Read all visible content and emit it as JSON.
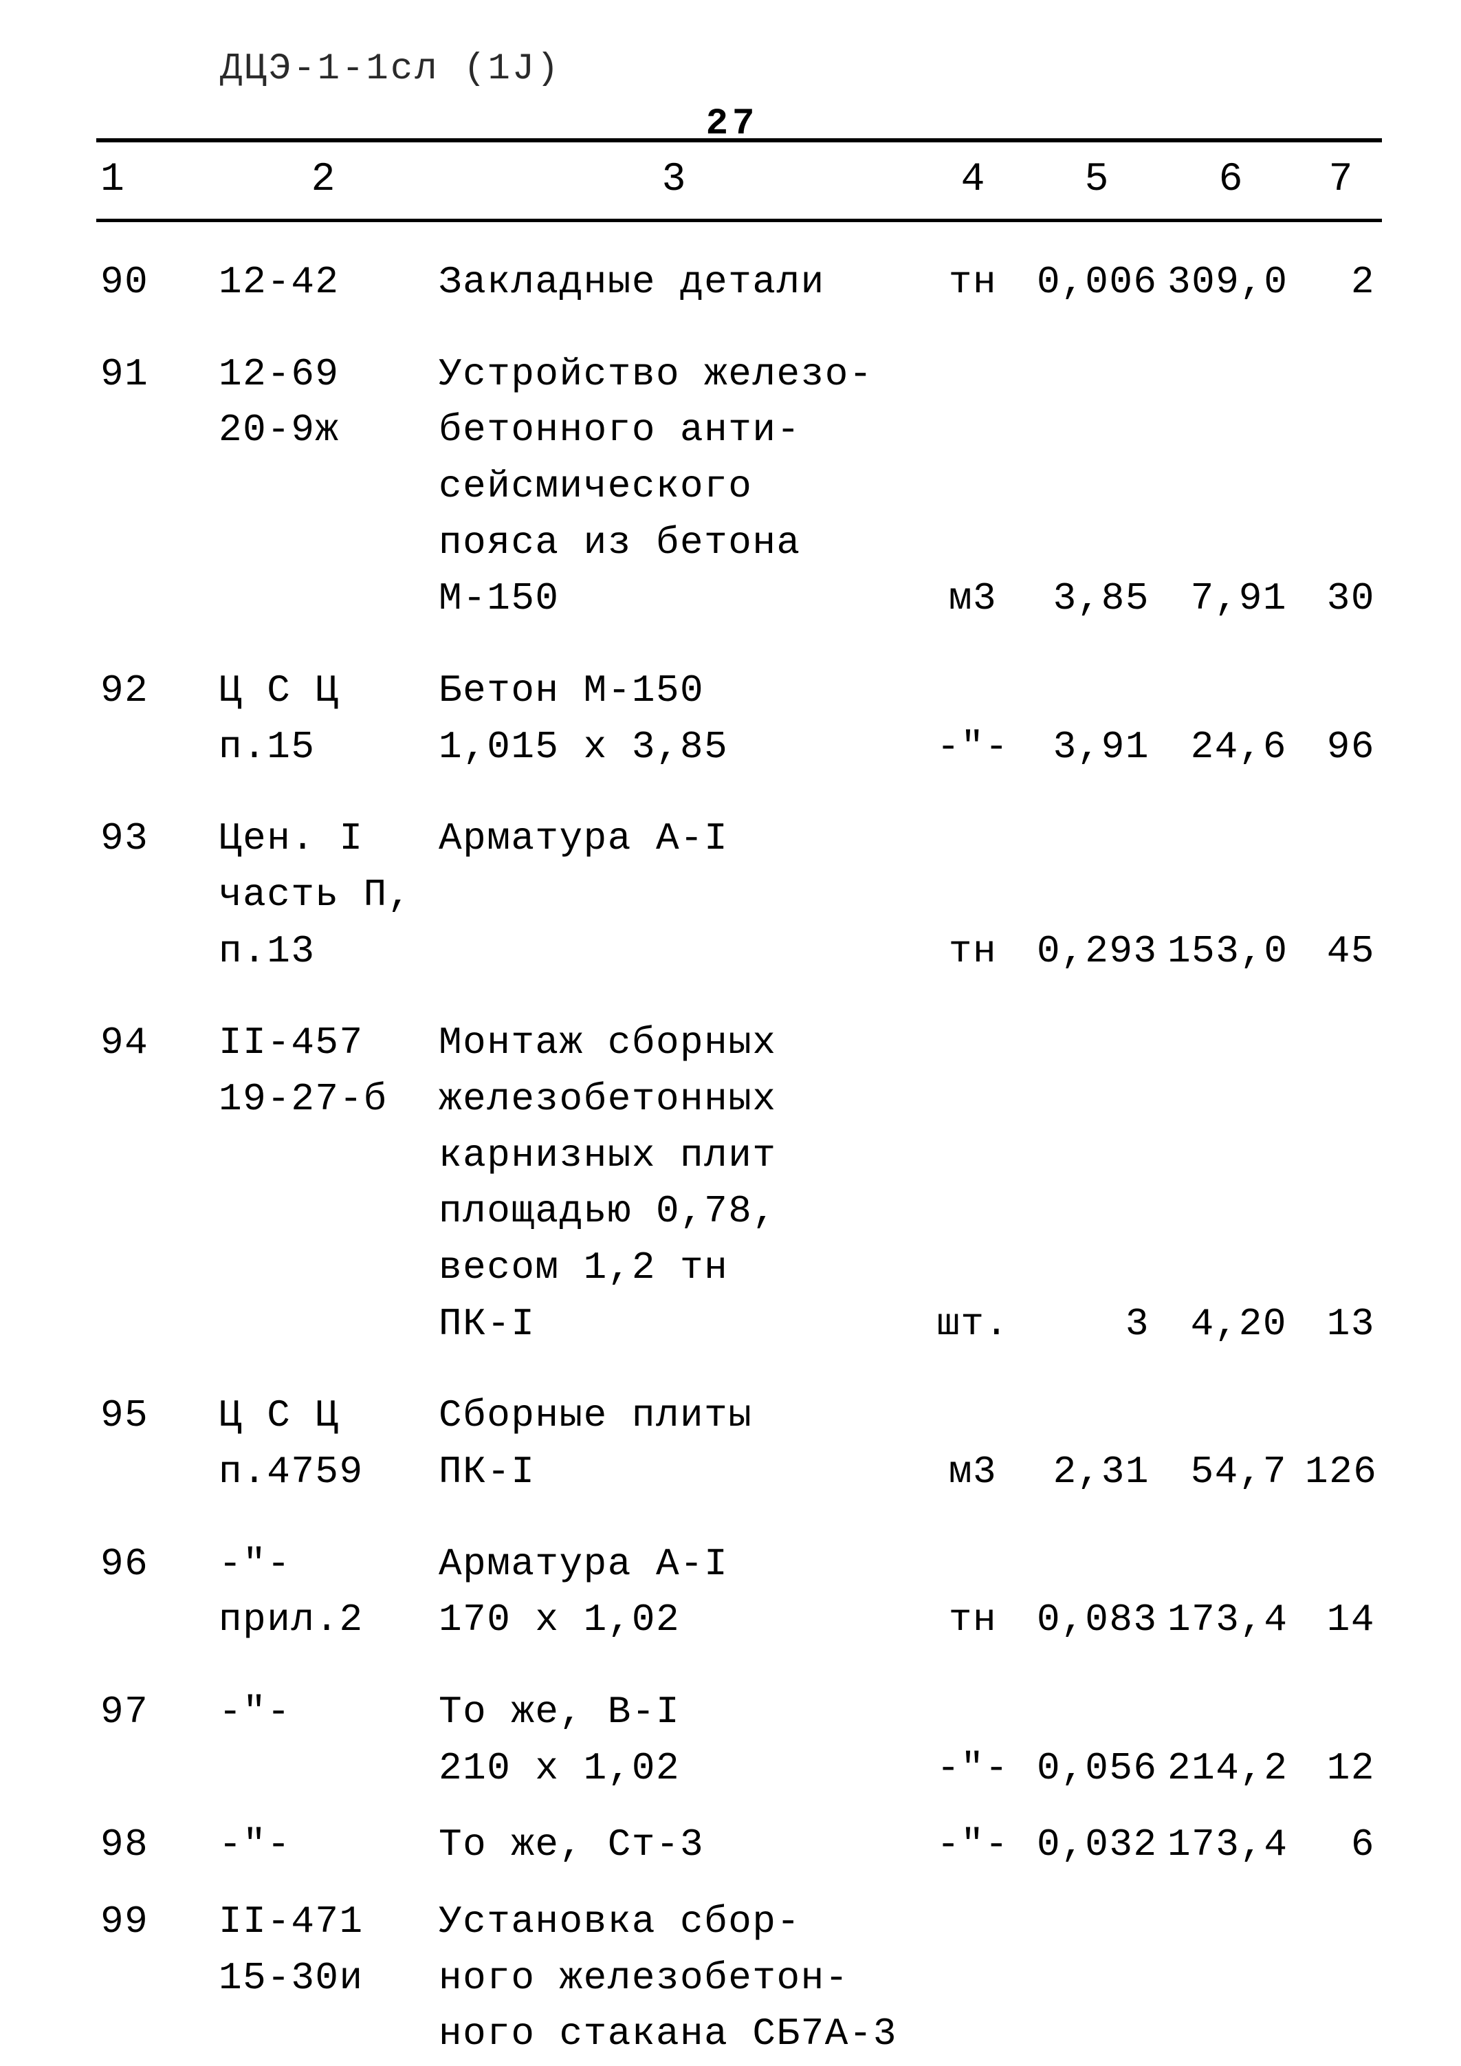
{
  "header_note": "ДЦЭ-1-1сл (1J)",
  "page_number": "27",
  "columns": {
    "c1": "1",
    "c2": "2",
    "c3": "3",
    "c4": "4",
    "c5": "5",
    "c6": "6",
    "c7": "7"
  },
  "rows": [
    {
      "n": "90",
      "code": "12-42",
      "desc": [
        "Закладные детали"
      ],
      "unit": "тн",
      "qty": "0,006",
      "price": "309,0",
      "sum": "2"
    },
    {
      "n": "91",
      "code_lines": [
        "12-69",
        "20-9ж"
      ],
      "desc": [
        "Устройство железо-",
        "бетонного анти-",
        "сейсмического",
        "пояса из бетона",
        "М-150"
      ],
      "unit": "м3",
      "qty": "3,85",
      "price": "7,91",
      "sum": "30"
    },
    {
      "n": "92",
      "code_lines": [
        "Ц С Ц",
        "п.15"
      ],
      "desc": [
        "Бетон М-150",
        "1,015 x 3,85"
      ],
      "unit": "-\"-",
      "qty": "3,91",
      "price": "24,6",
      "sum": "96"
    },
    {
      "n": "93",
      "code_lines": [
        "Цен. I",
        "часть П,",
        "п.13"
      ],
      "desc": [
        "Арматура A-I"
      ],
      "desc_pad_after": 2,
      "unit": "тн",
      "qty": "0,293",
      "price": "153,0",
      "sum": "45"
    },
    {
      "n": "94",
      "code_lines": [
        "II-457",
        "19-27-б"
      ],
      "desc": [
        "Монтаж сборных",
        "железобетонных",
        "карнизных плит",
        "площадью 0,78,",
        "весом 1,2 тн",
        "ПК-I"
      ],
      "unit": "шт.",
      "qty": "3",
      "price": "4,20",
      "sum": "13"
    },
    {
      "n": "95",
      "code_lines": [
        "Ц С Ц",
        "п.4759"
      ],
      "desc": [
        "Сборные плиты",
        "ПК-I"
      ],
      "unit": "м3",
      "qty": "2,31",
      "price": "54,7",
      "sum": "126"
    },
    {
      "n": "96",
      "code_lines": [
        "-\"-",
        "прил.2"
      ],
      "desc": [
        "Арматура A-I",
        "170 x 1,02"
      ],
      "unit": "тн",
      "qty": "0,083",
      "price": "173,4",
      "sum": "14"
    },
    {
      "n": "97",
      "code_lines": [
        "-\"-"
      ],
      "desc": [
        "То же, B-I",
        "210 x 1,02"
      ],
      "unit": "-\"-",
      "qty": "0,056",
      "price": "214,2",
      "sum": "12"
    },
    {
      "n": "98",
      "code_lines": [
        "-\"-"
      ],
      "desc": [
        "То же, Ст-3"
      ],
      "unit": "-\"-",
      "qty": "0,032",
      "price": "173,4",
      "sum": "6",
      "tight": true
    },
    {
      "n": "99",
      "code_lines": [
        "II-471",
        "15-30и"
      ],
      "desc": [
        "Установка сбор-",
        "ного железобетон-",
        "ного стакана СБ7А-3"
      ],
      "unit": "",
      "qty": "",
      "price": "",
      "sum": "",
      "tight": true
    }
  ]
}
